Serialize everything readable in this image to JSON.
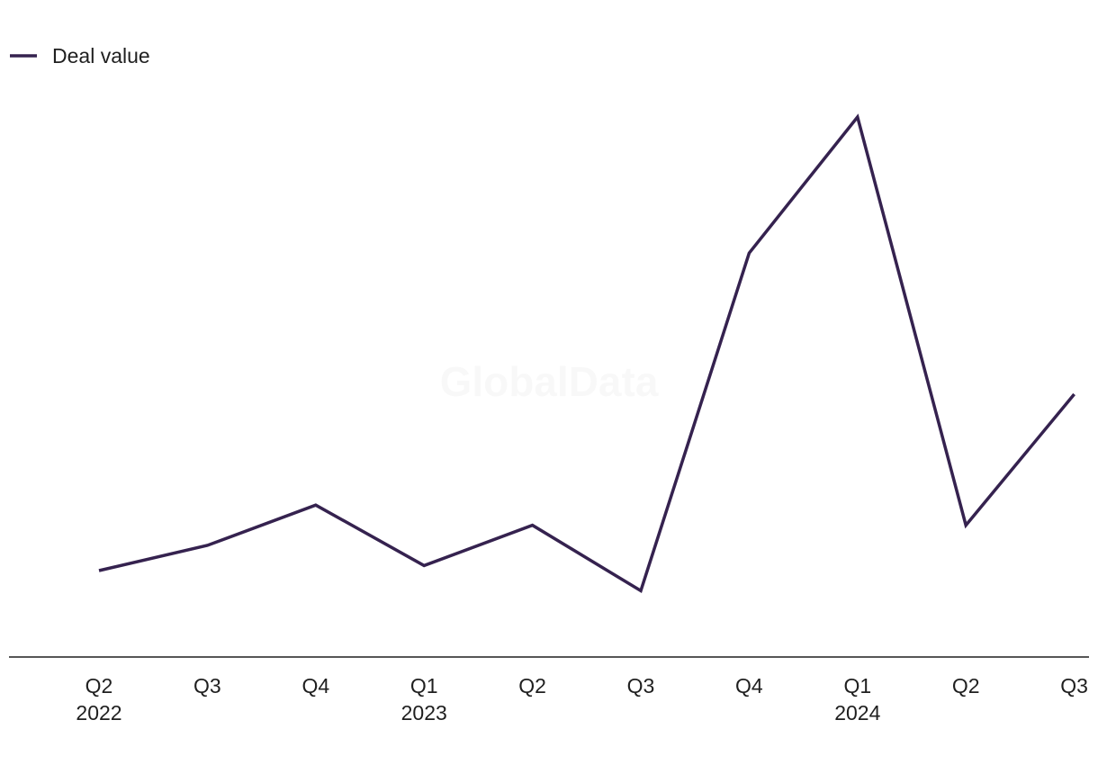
{
  "watermark": "GlobalData",
  "colors": {
    "series": "#35224f",
    "axis": "#1f1f1f"
  },
  "chart_data": {
    "type": "line",
    "title": "",
    "xlabel": "",
    "ylabel": "",
    "grid": false,
    "legend_position": "top-left",
    "y_axis_labels_visible": false,
    "categories": [
      {
        "quarter": "Q2",
        "year": "2022"
      },
      {
        "quarter": "Q3",
        "year": ""
      },
      {
        "quarter": "Q4",
        "year": ""
      },
      {
        "quarter": "Q1",
        "year": "2023"
      },
      {
        "quarter": "Q2",
        "year": ""
      },
      {
        "quarter": "Q3",
        "year": ""
      },
      {
        "quarter": "Q4",
        "year": ""
      },
      {
        "quarter": "Q1",
        "year": "2024"
      },
      {
        "quarter": "Q2",
        "year": ""
      },
      {
        "quarter": "Q3",
        "year": ""
      }
    ],
    "ylim": [
      0,
      100
    ],
    "series": [
      {
        "name": "Deal value",
        "values": [
          10,
          15,
          23,
          11,
          19,
          6,
          73,
          100,
          19,
          45
        ]
      }
    ]
  }
}
